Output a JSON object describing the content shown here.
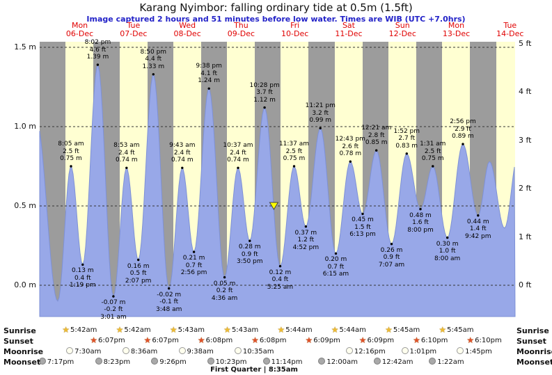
{
  "header": {
    "title": "Karang Nyimbor: falling ordinary tide at 0.5m (1.5ft)",
    "subtitle": "Image captured 2 hours and 51 minutes before low water. Times are WIB (UTC +7.0hrs)"
  },
  "days": [
    {
      "name": "Mon",
      "date": "06-Dec"
    },
    {
      "name": "Tue",
      "date": "07-Dec"
    },
    {
      "name": "Wed",
      "date": "08-Dec"
    },
    {
      "name": "Thu",
      "date": "09-Dec"
    },
    {
      "name": "Fri",
      "date": "10-Dec"
    },
    {
      "name": "Sat",
      "date": "11-Dec"
    },
    {
      "name": "Sun",
      "date": "12-Dec"
    },
    {
      "name": "Mon",
      "date": "13-Dec"
    },
    {
      "name": "Tue",
      "date": "14-Dec"
    }
  ],
  "axes": {
    "left": [
      {
        "label": "1.5 m",
        "value": 1.5
      },
      {
        "label": "1.0 m",
        "value": 1.0
      },
      {
        "label": "0.5 m",
        "value": 0.5
      },
      {
        "label": "0.0 m",
        "value": 0.0
      }
    ],
    "right": [
      {
        "label": "5 ft",
        "value_ft": 5
      },
      {
        "label": "4 ft",
        "value_ft": 4
      },
      {
        "label": "3 ft",
        "value_ft": 3
      },
      {
        "label": "2 ft",
        "value_ft": 2
      },
      {
        "label": "1 ft",
        "value_ft": 1
      },
      {
        "label": "0 ft",
        "value_ft": 0
      }
    ]
  },
  "chart_data": {
    "type": "area",
    "title": "Karang Nyimbor: falling ordinary tide at 0.5m (1.5ft)",
    "ylabel_left": "m",
    "ylabel_right": "ft",
    "ylim_m": [
      -0.2,
      1.55
    ],
    "grid": "dashed horizontal lines at metre ticks",
    "events": [
      {
        "type": "high",
        "time": "8:05 am",
        "ft": "2.5 ft",
        "m": "0.75 m",
        "t": 8.0833,
        "h": 0.75
      },
      {
        "type": "low",
        "time": "1:19 pm",
        "ft": "0.4 ft",
        "m": "0.13 m",
        "t": 13.3167,
        "h": 0.13
      },
      {
        "type": "high",
        "time": "8:02 pm",
        "ft": "4.6 ft",
        "m": "1.39 m",
        "t": 20.0333,
        "h": 1.39
      },
      {
        "type": "low",
        "time": "3:01 am",
        "ft": "-0.2 ft",
        "m": "-0.07 m",
        "t": 27.0167,
        "h": -0.07
      },
      {
        "type": "high",
        "time": "8:53 am",
        "ft": "2.4 ft",
        "m": "0.74 m",
        "t": 32.8833,
        "h": 0.74
      },
      {
        "type": "low",
        "time": "2:07 pm",
        "ft": "0.5 ft",
        "m": "0.16 m",
        "t": 38.1167,
        "h": 0.16
      },
      {
        "type": "high",
        "time": "8:50 pm",
        "ft": "4.4 ft",
        "m": "1.33 m",
        "t": 44.8333,
        "h": 1.33
      },
      {
        "type": "low",
        "time": "3:48 am",
        "ft": "-0.1 ft",
        "m": "-0.02 m",
        "t": 51.8,
        "h": -0.02
      },
      {
        "type": "high",
        "time": "9:43 am",
        "ft": "2.4 ft",
        "m": "0.74 m",
        "t": 57.7167,
        "h": 0.74
      },
      {
        "type": "low",
        "time": "2:56 pm",
        "ft": "0.7 ft",
        "m": "0.21 m",
        "t": 62.9333,
        "h": 0.21
      },
      {
        "type": "high",
        "time": "9:38 pm",
        "ft": "4.1 ft",
        "m": "1.24 m",
        "t": 69.6333,
        "h": 1.24
      },
      {
        "type": "low",
        "time": "4:36 am",
        "ft": "0.2 ft",
        "m": "0.05 m",
        "t": 76.6,
        "h": 0.05
      },
      {
        "type": "high",
        "time": "10:37 am",
        "ft": "2.4 ft",
        "m": "0.74 m",
        "t": 82.6167,
        "h": 0.74
      },
      {
        "type": "low",
        "time": "3:50 pm",
        "ft": "0.9 ft",
        "m": "0.28 m",
        "t": 87.8333,
        "h": 0.28
      },
      {
        "type": "high",
        "time": "10:28 pm",
        "ft": "3.7 ft",
        "m": "1.12 m",
        "t": 94.4667,
        "h": 1.12
      },
      {
        "type": "low",
        "time": "5:25 am",
        "ft": "0.4 ft",
        "m": "0.12 m",
        "t": 101.4167,
        "h": 0.12
      },
      {
        "type": "high",
        "time": "11:37 am",
        "ft": "2.5 ft",
        "m": "0.75 m",
        "t": 107.6167,
        "h": 0.75
      },
      {
        "type": "low",
        "time": "4:52 pm",
        "ft": "1.2 ft",
        "m": "0.37 m",
        "t": 112.8667,
        "h": 0.37
      },
      {
        "type": "high",
        "time": "11:21 pm",
        "ft": "3.2 ft",
        "m": "0.99 m",
        "t": 119.35,
        "h": 0.99
      },
      {
        "type": "low",
        "time": "6:15 am",
        "ft": "0.7 ft",
        "m": "0.20 m",
        "t": 126.25,
        "h": 0.2
      },
      {
        "type": "high",
        "time": "12:43 pm",
        "ft": "2.6 ft",
        "m": "0.78 m",
        "t": 132.7167,
        "h": 0.78
      },
      {
        "type": "low",
        "time": "6:13 pm",
        "ft": "1.5 ft",
        "m": "0.45 m",
        "t": 138.2167,
        "h": 0.45
      },
      {
        "type": "high",
        "time": "12:21 am",
        "ft": "2.8 ft",
        "m": "0.85 m",
        "t": 144.35,
        "h": 0.85
      },
      {
        "type": "low",
        "time": "7:07 am",
        "ft": "0.9 ft",
        "m": "0.26 m",
        "t": 151.1167,
        "h": 0.26
      },
      {
        "type": "high",
        "time": "1:52 pm",
        "ft": "2.7 ft",
        "m": "0.83 m",
        "t": 157.8667,
        "h": 0.83
      },
      {
        "type": "low",
        "time": "8:00 pm",
        "ft": "1.6 ft",
        "m": "0.48 m",
        "t": 164.0,
        "h": 0.48
      },
      {
        "type": "high",
        "time": "1:31 am",
        "ft": "2.5 ft",
        "m": "0.75 m",
        "t": 169.5167,
        "h": 0.75
      },
      {
        "type": "low",
        "time": "8:00 am",
        "ft": "1.0 ft",
        "m": "0.30 m",
        "t": 176.0,
        "h": 0.3
      },
      {
        "type": "high",
        "time": "2:56 pm",
        "ft": "2.9 ft",
        "m": "0.89 m",
        "t": 182.9333,
        "h": 0.89
      },
      {
        "type": "low",
        "time": "9:42 pm",
        "ft": "1.4 ft",
        "m": "0.44 m",
        "t": 189.7,
        "h": 0.44
      }
    ],
    "boundary_points": [
      {
        "t": -7.5,
        "h": 1.05
      },
      {
        "t": 2.2,
        "h": -0.1
      },
      {
        "t": 194.8,
        "h": 0.78
      },
      {
        "t": 201.5,
        "h": 0.36
      },
      {
        "t": 207.5,
        "h": 0.82
      }
    ],
    "current_marker": {
      "t": 98.6,
      "h": 0.5
    }
  },
  "astro": {
    "row_labels": {
      "sunrise": "Sunrise",
      "sunset": "Sunset",
      "moonrise": "Moonrise",
      "moonset": "Moonset"
    },
    "sunrise": [
      {
        "day": 0,
        "time": "5:42am"
      },
      {
        "day": 1,
        "time": "5:42am"
      },
      {
        "day": 2,
        "time": "5:43am"
      },
      {
        "day": 3,
        "time": "5:43am"
      },
      {
        "day": 4,
        "time": "5:44am"
      },
      {
        "day": 5,
        "time": "5:44am"
      },
      {
        "day": 6,
        "time": "5:45am"
      },
      {
        "day": 7,
        "time": "5:45am"
      }
    ],
    "sunset": [
      {
        "day": 0,
        "time": "6:07pm"
      },
      {
        "day": 1,
        "time": "6:07pm"
      },
      {
        "day": 2,
        "time": "6:08pm"
      },
      {
        "day": 3,
        "time": "6:08pm"
      },
      {
        "day": 4,
        "time": "6:09pm"
      },
      {
        "day": 5,
        "time": "6:09pm"
      },
      {
        "day": 6,
        "time": "6:10pm"
      },
      {
        "day": 7,
        "time": "6:10pm"
      }
    ],
    "moonrise": [
      {
        "day": 0,
        "time": "7:30am"
      },
      {
        "day": 1,
        "time": "8:36am"
      },
      {
        "day": 2,
        "time": "9:38am"
      },
      {
        "day": 3,
        "time": "10:35am"
      },
      {
        "day": 5,
        "time": "12:16pm"
      },
      {
        "day": 6,
        "time": "1:01pm"
      },
      {
        "day": 7,
        "time": "1:45pm"
      }
    ],
    "moonset": [
      {
        "day": -1,
        "time": "7:17pm"
      },
      {
        "day": 0,
        "time": "8:23pm"
      },
      {
        "day": 1,
        "time": "9:26pm"
      },
      {
        "day": 2,
        "time": "10:23pm"
      },
      {
        "day": 3,
        "time": "11:14pm"
      },
      {
        "day": 5,
        "time": "12:00am"
      },
      {
        "day": 6,
        "time": "12:42am"
      },
      {
        "day": 7,
        "time": "1:22am"
      }
    ],
    "phase_label": "First Quarter | 8:35am"
  },
  "colors": {
    "night_band": "#9c9c9c",
    "day_band": "#ffffd2",
    "tide_fill": "#98a8e8",
    "tide_edge": "#7e91d6",
    "day_label": "#e00000",
    "subtitle": "#2323c8",
    "marker": "#ffff00",
    "sunrise_star": "#eebb33",
    "sunset_star": "#e0512a"
  }
}
